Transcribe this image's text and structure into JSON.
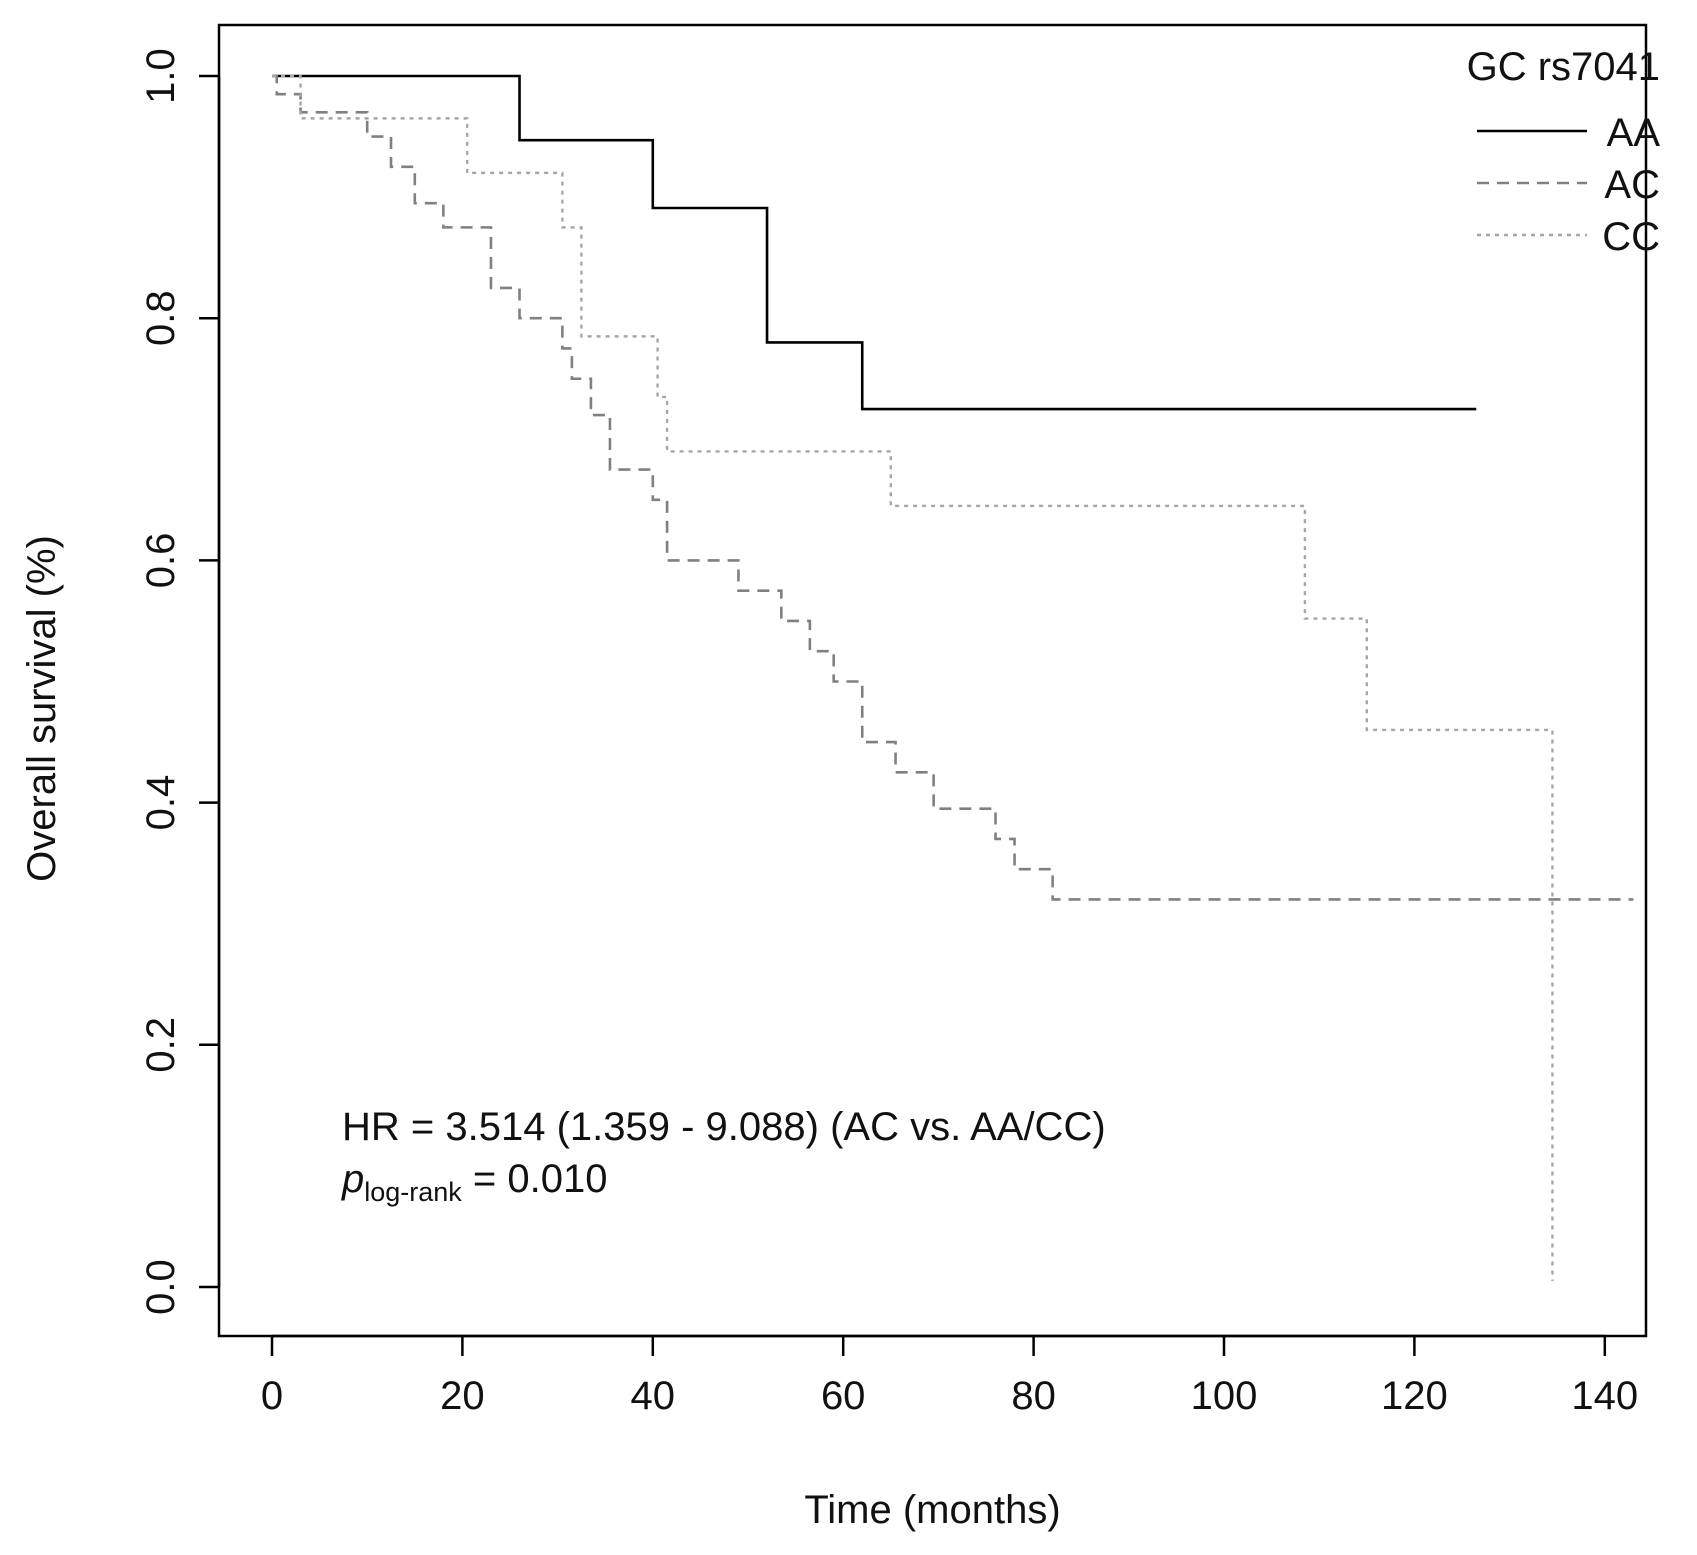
{
  "chart_data": {
    "type": "line",
    "subtype": "kaplan-meier",
    "title": "",
    "xlabel": "Time (months)",
    "ylabel": "Overall survival (%)",
    "xlim": [
      0,
      145
    ],
    "ylim": [
      0,
      1.0
    ],
    "x_ticks": [
      0,
      20,
      40,
      60,
      80,
      100,
      120,
      140
    ],
    "x_tick_labels": [
      "0",
      "20",
      "40",
      "60",
      "80",
      "100",
      "120",
      "140"
    ],
    "y_ticks": [
      0.0,
      0.2,
      0.4,
      0.6,
      0.8,
      1.0
    ],
    "y_tick_labels": [
      "0.0",
      "0.2",
      "0.4",
      "0.6",
      "0.8",
      "1.0"
    ],
    "grid": false,
    "legend": {
      "title": "GC rs7041",
      "placement": "top-right",
      "entries": [
        "AA",
        "AC",
        "CC"
      ]
    },
    "series": [
      {
        "name": "AA",
        "color": "#000000",
        "dash": "solid",
        "times": [
          26.0,
          40.0,
          52.0,
          62.0
        ],
        "survival": [
          0.947,
          0.891,
          0.78,
          0.725
        ],
        "end_time": 126.5
      },
      {
        "name": "AC",
        "color": "#808080",
        "dash": "dashed",
        "times": [
          0.5,
          3.0,
          10.0,
          12.5,
          15.0,
          18.0,
          23.0,
          26.0,
          30.5,
          31.5,
          33.5,
          35.5,
          40.0,
          41.5,
          49.0,
          53.5,
          56.5,
          59.0,
          62.0,
          65.5,
          69.5,
          76.0,
          78.0,
          82.0
        ],
        "survival": [
          0.985,
          0.97,
          0.95,
          0.925,
          0.895,
          0.875,
          0.825,
          0.8,
          0.775,
          0.75,
          0.72,
          0.675,
          0.65,
          0.6,
          0.575,
          0.55,
          0.525,
          0.5,
          0.45,
          0.425,
          0.395,
          0.37,
          0.345,
          0.32
        ],
        "end_time": 143.0
      },
      {
        "name": "CC",
        "color": "#a6a6a6",
        "dash": "dotted",
        "times": [
          3.0,
          20.5,
          30.5,
          32.5,
          40.5,
          41.5,
          65.0,
          108.5,
          115.0,
          134.5
        ],
        "survival": [
          0.965,
          0.92,
          0.875,
          0.785,
          0.735,
          0.69,
          0.645,
          0.552,
          0.46,
          0.005
        ],
        "end_time": 134.5
      }
    ],
    "annotations": {
      "hr_text": "HR = 3.514 (1.359 - 9.088) (AC vs. AA/CC)",
      "p_symbol": "p",
      "p_subscript": "log-rank",
      "p_value_text": " = 0.010"
    }
  }
}
